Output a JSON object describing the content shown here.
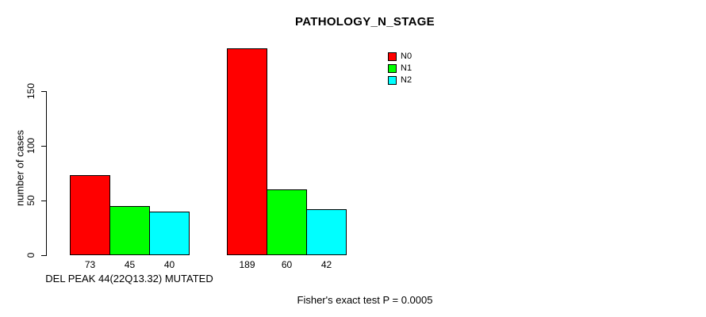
{
  "chart_data": {
    "type": "bar",
    "title": "PATHOLOGY_N_STAGE",
    "ylabel": "number of cases",
    "xlabel": "",
    "ylim": [
      0,
      150
    ],
    "yticks": [
      0,
      50,
      100,
      150
    ],
    "grid": false,
    "legend_position": "top-right",
    "bar_value_labels_shown": true,
    "categories": [
      "DEL PEAK 44(22Q13.32) MUTATED",
      ""
    ],
    "series": [
      {
        "name": "N0",
        "color": "#ff0000",
        "values": [
          73,
          189
        ]
      },
      {
        "name": "N1",
        "color": "#00ff00",
        "values": [
          45,
          60
        ]
      },
      {
        "name": "N2",
        "color": "#00ffff",
        "values": [
          40,
          42
        ]
      }
    ],
    "annotation": "Fisher's exact test P = 0.0005"
  },
  "colors": {
    "background": "#ffffff",
    "axis": "#000000",
    "text": "#000000",
    "n0": "#ff0000",
    "n1": "#00ff00",
    "n2": "#00ffff"
  }
}
